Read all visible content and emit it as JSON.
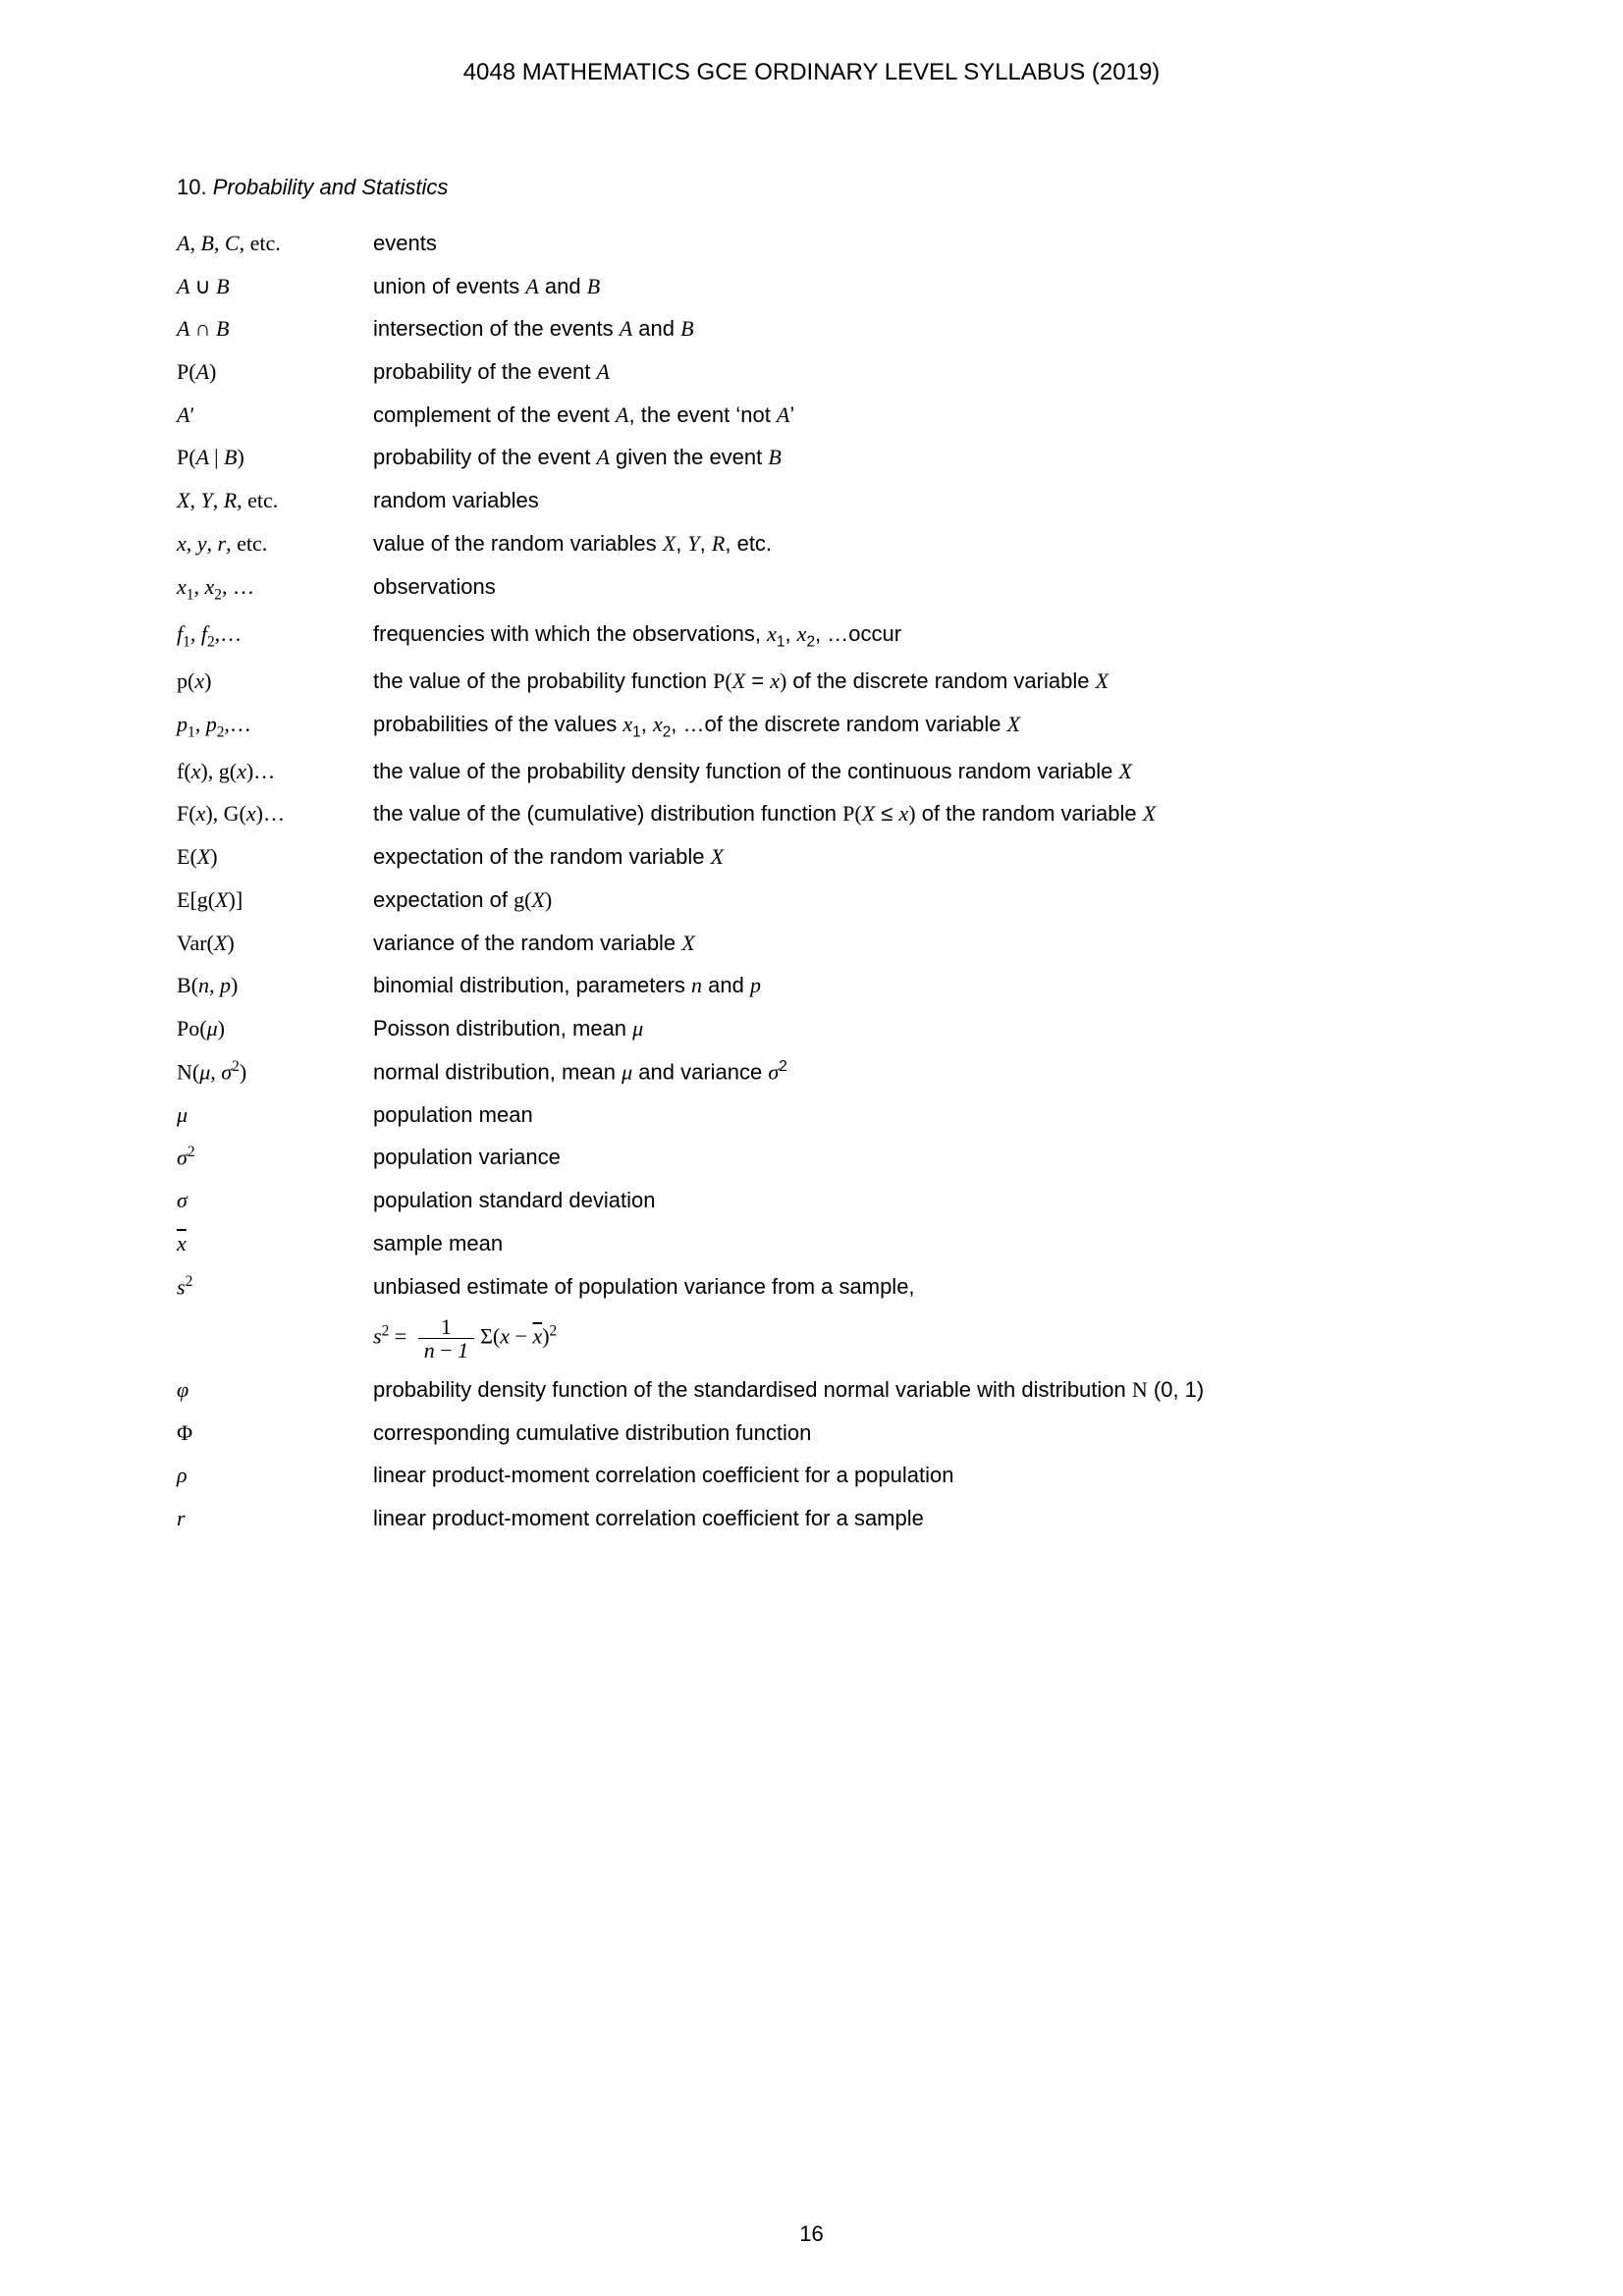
{
  "header": "4048 MATHEMATICS GCE ORDINARY LEVEL SYLLABUS (2019)",
  "section": {
    "number": "10.",
    "title": "Probability and Statistics"
  },
  "rows": [
    {
      "symHtml": "A<span class='rm'>,</span> B<span class='rm'>,</span> C<span class='rm'>, etc.</span>",
      "descHtml": "events"
    },
    {
      "symHtml": "A <span class='rm'>&cup;</span> B",
      "descHtml": "union of events <span class='it'>A</span> and <span class='it'>B</span>"
    },
    {
      "symHtml": "A <span class='rm'>&cap;</span> B",
      "descHtml": "intersection of the events <span class='it'>A</span> and <span class='it'>B</span>"
    },
    {
      "symHtml": "<span class='rm'>P(</span>A<span class='rm'>)</span>",
      "descHtml": "probability of the event <span class='it'>A</span>"
    },
    {
      "symHtml": "A<span class='rm'>&prime;</span>",
      "descHtml": "complement of the event <span class='it'>A</span>, the event &lsquo;not <span class='it'>A</span>&rsquo;"
    },
    {
      "symHtml": "<span class='rm'>P(</span>A <span class='rm'>|</span> B<span class='rm'>)</span>",
      "descHtml": "probability of the event <span class='it'>A</span> given the event <span class='it'>B</span>"
    },
    {
      "symHtml": "X<span class='rm'>,</span> Y<span class='rm'>,</span> R<span class='rm'>, etc.</span>",
      "descHtml": "random variables"
    },
    {
      "symHtml": "x<span class='rm'>,</span> y<span class='rm'>,</span> r<span class='rm'>, etc.</span>",
      "descHtml": "value of the random variables <span class='it'>X</span>, <span class='it'>Y</span>, <span class='it'>R</span>, etc."
    },
    {
      "symHtml": "x<span class='sub'>1</span><span class='rm'>,</span> x<span class='sub'>2</span><span class='rm'>, &hellip;</span>",
      "descHtml": "observations"
    },
    {
      "symHtml": "f<span class='sub'>1</span><span class='rm'>,</span> f<span class='sub'>2</span><span class='rm'>,&hellip;</span>",
      "descHtml": "frequencies with which the observations, <span class='it'>x</span><span class='sub'>1</span>, <span class='it'>x</span><span class='sub'>2</span>, &hellip;occur"
    },
    {
      "symHtml": "<span class='rm'>p(</span>x<span class='rm'>)</span>",
      "descHtml": "the value of the probability function <span class='rm-serif'>P(</span><span class='it'>X</span> = <span class='it'>x</span><span class='rm-serif'>)</span> of the discrete random variable <span class='it'>X</span>"
    },
    {
      "symHtml": "p<span class='sub'>1</span><span class='rm'>,</span> p<span class='sub'>2</span><span class='rm'>,&hellip;</span>",
      "descHtml": "probabilities of the values <span class='it'>x</span><span class='sub'>1</span>, <span class='it'>x</span><span class='sub'>2</span>, &hellip;of the discrete random variable <span class='it'>X</span>"
    },
    {
      "symHtml": "<span class='rm'>f(</span>x<span class='rm'>), g(</span>x<span class='rm'>)&hellip;</span>",
      "descHtml": "the value of the probability density function of the continuous random variable <span class='it'>X</span>"
    },
    {
      "symHtml": "<span class='rm'>F(</span>x<span class='rm'>), G(</span>x<span class='rm'>)&hellip;</span>",
      "descHtml": "the value of the (cumulative) distribution function <span class='rm-serif'>P(</span><span class='it'>X</span> &le; <span class='it'>x</span><span class='rm-serif'>)</span> of the random variable <span class='it'>X</span>"
    },
    {
      "symHtml": "<span class='rm'>E(</span>X<span class='rm'>)</span>",
      "descHtml": "expectation of the random variable <span class='it'>X</span>"
    },
    {
      "symHtml": "<span class='rm'>E[g(</span>X<span class='rm'>)]</span>",
      "descHtml": "expectation of <span class='rm-serif'>g(</span><span class='it'>X</span><span class='rm-serif'>)</span>"
    },
    {
      "symHtml": "<span class='rm'>Var(</span>X<span class='rm'>)</span>",
      "descHtml": "variance of the random variable <span class='it'>X</span>"
    },
    {
      "symHtml": "<span class='rm'>B(</span>n<span class='rm'>,</span> p<span class='rm'>)</span>",
      "descHtml": "binomial distribution, parameters <span class='it'>n</span> and <span class='it'>p</span>"
    },
    {
      "symHtml": "<span class='rm'>Po(</span>&mu;<span class='rm'>)</span>",
      "descHtml": "Poisson distribution, mean <span class='it'>&mu;</span>"
    },
    {
      "symHtml": "<span class='rm'>N(</span>&mu;<span class='rm'>,</span> &sigma;<span class='sup'><span class='rm'>2</span></span><span class='rm'>)</span>",
      "descHtml": "normal distribution, mean <span class='it'>&mu;</span> and variance <span class='it'>&sigma;</span><span class='sup'>2</span>"
    },
    {
      "symHtml": "&mu;",
      "descHtml": "population mean"
    },
    {
      "symHtml": "&sigma;<span class='sup'><span class='rm'>2</span></span>",
      "descHtml": "population variance"
    },
    {
      "symHtml": "&sigma;",
      "descHtml": "population standard deviation"
    },
    {
      "symHtml": "<span class='overline'>x</span>",
      "descHtml": "sample mean"
    },
    {
      "symHtml": "s<span class='sup'><span class='rm'>2</span></span>",
      "descHtml": "unbiased estimate of population variance from a sample,",
      "formulaHtml": "s<span class='sup up'>2</span> <span class='up'>=</span> <span class='frac'><span class='top'>1</span><span class='bot'>n <span style='font-style:normal'>&minus;</span> 1</span></span><span class='up'>&Sigma;(</span>x <span class='up'>&minus;</span> <span class='overline'>x</span><span class='up'>)</span><span class='sup up'>2</span>"
    },
    {
      "symHtml": "&phi;",
      "descHtml": "probability density function of the standardised normal variable with distribution <span class='rm-serif'>N</span> (0, 1)"
    },
    {
      "symHtml": "<span class='rm'>&Phi;</span>",
      "descHtml": "corresponding cumulative distribution function"
    },
    {
      "symHtml": "&rho;",
      "descHtml": "linear product-moment correlation coefficient for a population"
    },
    {
      "symHtml": "r",
      "descHtml": "linear product-moment correlation coefficient for a sample"
    }
  ],
  "pageNumber": "16"
}
